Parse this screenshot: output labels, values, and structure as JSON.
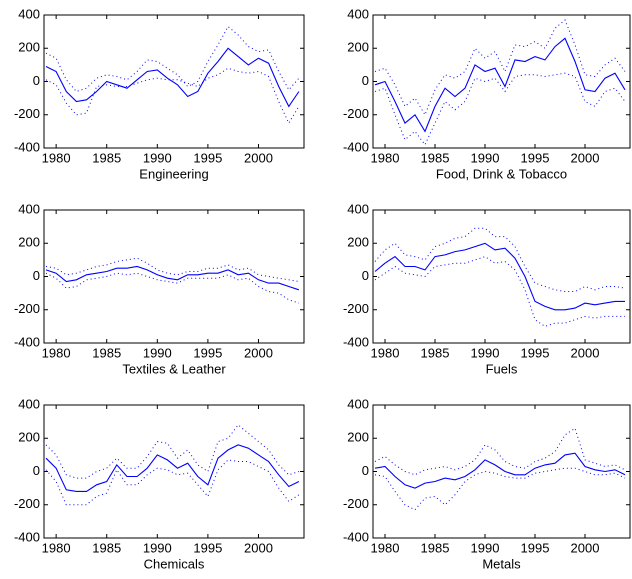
{
  "chart_data": [
    {
      "type": "line",
      "xlabel": "Engineering",
      "x": [
        1979,
        1980,
        1981,
        1982,
        1983,
        1984,
        1985,
        1986,
        1987,
        1988,
        1989,
        1990,
        1991,
        1992,
        1993,
        1994,
        1995,
        1996,
        1997,
        1998,
        1999,
        2000,
        2001,
        2002,
        2003,
        2004
      ],
      "xlim": [
        1978.8,
        2004.5
      ],
      "xticks": [
        1980,
        1985,
        1990,
        1995,
        2000
      ],
      "ylim": [
        -400,
        400
      ],
      "yticks": [
        -400,
        -200,
        0,
        200,
        400
      ],
      "series": [
        {
          "color": "#0000ff",
          "style": "solid",
          "values": [
            90,
            60,
            -60,
            -120,
            -110,
            -60,
            0,
            -20,
            -40,
            10,
            60,
            70,
            20,
            -20,
            -90,
            -60,
            50,
            120,
            200,
            150,
            100,
            140,
            110,
            -30,
            -150,
            -60
          ]
        },
        {
          "color": "#0000ff",
          "style": "dotted",
          "values": [
            170,
            140,
            10,
            -60,
            -40,
            20,
            40,
            30,
            10,
            60,
            130,
            120,
            80,
            40,
            -30,
            0,
            120,
            220,
            330,
            280,
            210,
            180,
            190,
            60,
            -50,
            20
          ]
        },
        {
          "color": "#0000ff",
          "style": "dotted",
          "values": [
            10,
            -20,
            -130,
            -200,
            -190,
            -30,
            -20,
            -30,
            -30,
            -10,
            10,
            20,
            10,
            10,
            -10,
            -30,
            20,
            40,
            80,
            60,
            50,
            60,
            30,
            -120,
            -250,
            -150
          ]
        }
      ]
    },
    {
      "type": "line",
      "xlabel": "Food, Drink & Tobacco",
      "x": [
        1979,
        1980,
        1981,
        1982,
        1983,
        1984,
        1985,
        1986,
        1987,
        1988,
        1989,
        1990,
        1991,
        1992,
        1993,
        1994,
        1995,
        1996,
        1997,
        1998,
        1999,
        2000,
        2001,
        2002,
        2003,
        2004
      ],
      "xlim": [
        1978.8,
        2004.5
      ],
      "xticks": [
        1980,
        1985,
        1990,
        1995,
        2000
      ],
      "ylim": [
        -400,
        400
      ],
      "yticks": [
        -400,
        -200,
        0,
        200,
        400
      ],
      "series": [
        {
          "color": "#0000ff",
          "style": "solid",
          "values": [
            -20,
            0,
            -120,
            -250,
            -200,
            -300,
            -150,
            -40,
            -90,
            -40,
            100,
            60,
            80,
            -30,
            130,
            120,
            150,
            130,
            210,
            260,
            120,
            -50,
            -60,
            20,
            50,
            -50
          ]
        },
        {
          "color": "#0000ff",
          "style": "dotted",
          "values": [
            60,
            80,
            -20,
            -150,
            -100,
            -200,
            -50,
            40,
            20,
            60,
            200,
            140,
            180,
            60,
            220,
            210,
            240,
            200,
            320,
            370,
            220,
            40,
            30,
            100,
            140,
            60
          ]
        },
        {
          "color": "#0000ff",
          "style": "dotted",
          "values": [
            -60,
            -40,
            -200,
            -350,
            -300,
            -380,
            -250,
            -120,
            -170,
            -120,
            20,
            0,
            20,
            -60,
            30,
            40,
            40,
            30,
            40,
            50,
            30,
            -120,
            -150,
            -60,
            -40,
            -120
          ]
        }
      ]
    },
    {
      "type": "line",
      "xlabel": "Textiles & Leather",
      "x": [
        1979,
        1980,
        1981,
        1982,
        1983,
        1984,
        1985,
        1986,
        1987,
        1988,
        1989,
        1990,
        1991,
        1992,
        1993,
        1994,
        1995,
        1996,
        1997,
        1998,
        1999,
        2000,
        2001,
        2002,
        2003,
        2004
      ],
      "xlim": [
        1978.8,
        2004.5
      ],
      "xticks": [
        1980,
        1985,
        1990,
        1995,
        2000
      ],
      "ylim": [
        -400,
        400
      ],
      "yticks": [
        -400,
        -200,
        0,
        200,
        400
      ],
      "series": [
        {
          "color": "#0000ff",
          "style": "solid",
          "values": [
            40,
            20,
            -30,
            -20,
            10,
            20,
            30,
            50,
            50,
            60,
            40,
            10,
            -10,
            -20,
            10,
            10,
            20,
            20,
            40,
            10,
            20,
            -20,
            -40,
            -40,
            -60,
            -80
          ]
        },
        {
          "color": "#0000ff",
          "style": "dotted",
          "values": [
            60,
            50,
            10,
            20,
            40,
            60,
            70,
            90,
            100,
            110,
            80,
            40,
            20,
            10,
            30,
            30,
            50,
            50,
            70,
            40,
            50,
            10,
            0,
            -10,
            -20,
            -30
          ]
        },
        {
          "color": "#0000ff",
          "style": "dotted",
          "values": [
            20,
            -10,
            -70,
            -60,
            -20,
            -10,
            0,
            20,
            10,
            20,
            0,
            -20,
            -30,
            -40,
            -10,
            -10,
            -10,
            -10,
            10,
            -20,
            -10,
            -60,
            -90,
            -100,
            -140,
            -160
          ]
        }
      ]
    },
    {
      "type": "line",
      "xlabel": "Fuels",
      "x": [
        1979,
        1980,
        1981,
        1982,
        1983,
        1984,
        1985,
        1986,
        1987,
        1988,
        1989,
        1990,
        1991,
        1992,
        1993,
        1994,
        1995,
        1996,
        1997,
        1998,
        1999,
        2000,
        2001,
        2002,
        2003,
        2004
      ],
      "xlim": [
        1978.8,
        2004.5
      ],
      "xticks": [
        1980,
        1985,
        1990,
        1995,
        2000
      ],
      "ylim": [
        -400,
        400
      ],
      "yticks": [
        -400,
        -200,
        0,
        200,
        400
      ],
      "series": [
        {
          "color": "#0000ff",
          "style": "solid",
          "values": [
            30,
            80,
            120,
            60,
            60,
            40,
            120,
            130,
            150,
            160,
            180,
            200,
            160,
            170,
            110,
            0,
            -150,
            -180,
            -200,
            -200,
            -190,
            -160,
            -170,
            -160,
            -150,
            -150
          ]
        },
        {
          "color": "#0000ff",
          "style": "dotted",
          "values": [
            90,
            160,
            200,
            130,
            120,
            100,
            180,
            200,
            230,
            240,
            290,
            290,
            240,
            240,
            180,
            60,
            -40,
            -60,
            -80,
            -90,
            -90,
            -60,
            -80,
            -60,
            -60,
            -70
          ]
        },
        {
          "color": "#0000ff",
          "style": "dotted",
          "values": [
            -20,
            20,
            60,
            20,
            10,
            0,
            60,
            70,
            80,
            80,
            100,
            120,
            80,
            90,
            40,
            -80,
            -260,
            -300,
            -280,
            -280,
            -260,
            -240,
            -250,
            -240,
            -240,
            -240
          ]
        }
      ]
    },
    {
      "type": "line",
      "xlabel": "Chemicals",
      "x": [
        1979,
        1980,
        1981,
        1982,
        1983,
        1984,
        1985,
        1986,
        1987,
        1988,
        1989,
        1990,
        1991,
        1992,
        1993,
        1994,
        1995,
        1996,
        1997,
        1998,
        1999,
        2000,
        2001,
        2002,
        2003,
        2004
      ],
      "xlim": [
        1978.8,
        2004.5
      ],
      "xticks": [
        1980,
        1985,
        1990,
        1995,
        2000
      ],
      "ylim": [
        -400,
        400
      ],
      "yticks": [
        -400,
        -200,
        0,
        200,
        400
      ],
      "series": [
        {
          "color": "#0000ff",
          "style": "solid",
          "values": [
            80,
            20,
            -110,
            -120,
            -120,
            -80,
            -60,
            40,
            -30,
            -30,
            20,
            100,
            70,
            20,
            50,
            -30,
            -80,
            80,
            130,
            160,
            140,
            100,
            60,
            -20,
            -90,
            -60
          ]
        },
        {
          "color": "#0000ff",
          "style": "dotted",
          "values": [
            160,
            100,
            -20,
            -40,
            -40,
            0,
            20,
            80,
            20,
            20,
            90,
            180,
            170,
            80,
            130,
            40,
            0,
            180,
            200,
            280,
            230,
            180,
            130,
            40,
            -20,
            0
          ]
        },
        {
          "color": "#0000ff",
          "style": "dotted",
          "values": [
            10,
            -60,
            -200,
            -200,
            -200,
            -150,
            -130,
            10,
            -80,
            -80,
            -20,
            20,
            10,
            -20,
            -10,
            -80,
            -150,
            10,
            70,
            60,
            60,
            30,
            0,
            -100,
            -180,
            -140
          ]
        }
      ]
    },
    {
      "type": "line",
      "xlabel": "Metals",
      "x": [
        1979,
        1980,
        1981,
        1982,
        1983,
        1984,
        1985,
        1986,
        1987,
        1988,
        1989,
        1990,
        1991,
        1992,
        1993,
        1994,
        1995,
        1996,
        1997,
        1998,
        1999,
        2000,
        2001,
        2002,
        2003,
        2004
      ],
      "xlim": [
        1978.8,
        2004.5
      ],
      "xticks": [
        1980,
        1985,
        1990,
        1995,
        2000
      ],
      "ylim": [
        -400,
        400
      ],
      "yticks": [
        -400,
        -200,
        0,
        200,
        400
      ],
      "series": [
        {
          "color": "#0000ff",
          "style": "solid",
          "values": [
            20,
            30,
            -30,
            -80,
            -100,
            -70,
            -60,
            -40,
            -50,
            -30,
            10,
            70,
            40,
            0,
            -20,
            -20,
            20,
            40,
            50,
            100,
            110,
            30,
            10,
            0,
            10,
            -20
          ]
        },
        {
          "color": "#0000ff",
          "style": "dotted",
          "values": [
            60,
            90,
            40,
            0,
            -20,
            10,
            20,
            30,
            10,
            30,
            70,
            160,
            130,
            60,
            30,
            20,
            60,
            80,
            120,
            220,
            260,
            70,
            50,
            30,
            40,
            10
          ]
        },
        {
          "color": "#0000ff",
          "style": "dotted",
          "values": [
            -20,
            -30,
            -120,
            -200,
            -230,
            -160,
            -150,
            -200,
            -140,
            -60,
            -20,
            0,
            -10,
            -30,
            -40,
            -40,
            -10,
            0,
            10,
            20,
            20,
            0,
            -20,
            -20,
            -10,
            -40
          ]
        }
      ]
    }
  ]
}
